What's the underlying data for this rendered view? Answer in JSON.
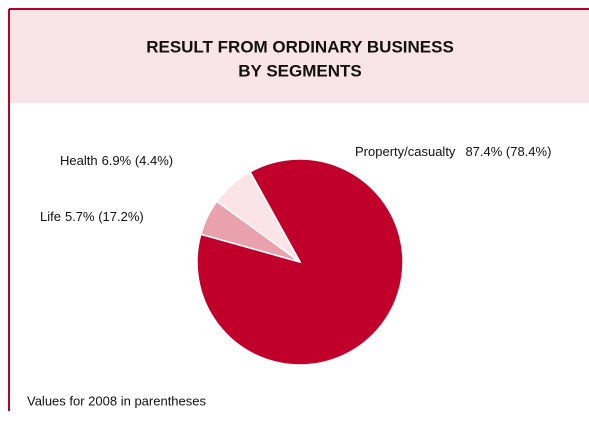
{
  "chart_data": {
    "type": "pie",
    "title": [
      "RESULT FROM ORDINARY BUSINESS",
      "BY SEGMENTS"
    ],
    "categories": [
      "Property/casualty",
      "Life",
      "Health"
    ],
    "values": [
      87.4,
      5.7,
      6.9
    ],
    "value_labels": [
      "87.4% (78.4%)",
      "5.7% (17.2%)",
      "6.9% (4.4%)"
    ],
    "colors": [
      "#c0002a",
      "#e9a2ad",
      "#fae4e7"
    ],
    "footnote": "Values for 2008 in parentheses"
  }
}
